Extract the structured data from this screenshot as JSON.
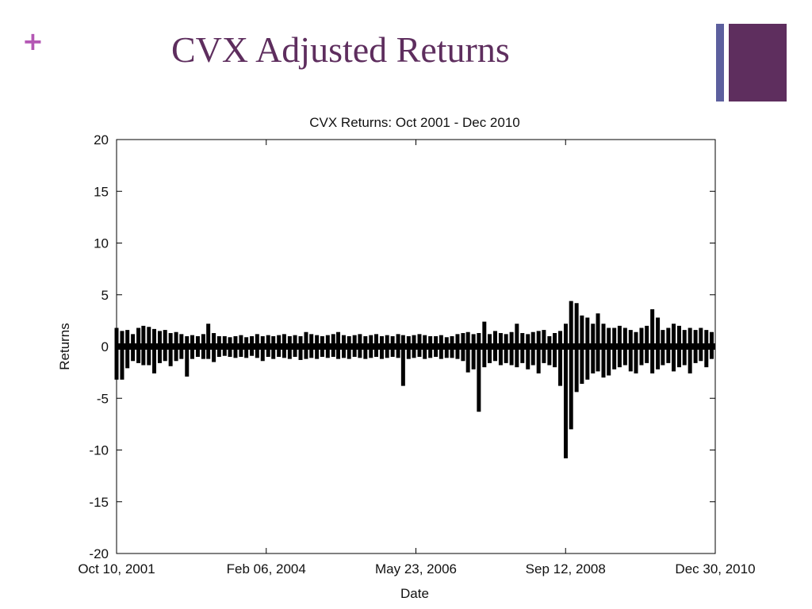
{
  "slide": {
    "plus": "+",
    "title": "CVX Adjusted Returns"
  },
  "colors": {
    "accent": "#5e2e5e",
    "plus": "#b457b4",
    "thin_bar": "#5c5f9e",
    "series": "#000000"
  },
  "chart_data": {
    "type": "line",
    "title": "CVX Returns: Oct 2001 - Dec 2010",
    "xlabel": "Date",
    "ylabel": "Returns",
    "ylim": [
      -20,
      20
    ],
    "yticks": [
      20,
      15,
      10,
      5,
      0,
      -5,
      -10,
      -15,
      -20
    ],
    "xlim": [
      "2001-10-10",
      "2010-12-30"
    ],
    "xticks": [
      "Oct 10, 2001",
      "Feb 06, 2004",
      "May 23, 2006",
      "Sep 12, 2008",
      "Dec 30, 2010"
    ],
    "grid": false,
    "series": [
      {
        "x": [
          "2001-10-10",
          "2001-11-10",
          "2001-12-10",
          "2002-01-10",
          "2002-02-10",
          "2002-03-10",
          "2002-04-10",
          "2002-05-10",
          "2002-06-10",
          "2002-07-10",
          "2002-08-10",
          "2002-09-10",
          "2002-10-10",
          "2002-11-10",
          "2002-12-10",
          "2003-01-10",
          "2003-02-10",
          "2003-03-10",
          "2003-04-10",
          "2003-05-10",
          "2003-06-10",
          "2003-07-10",
          "2003-08-10",
          "2003-09-10",
          "2003-10-10",
          "2003-11-10",
          "2003-12-10",
          "2004-01-10",
          "2004-02-10",
          "2004-03-10",
          "2004-04-10",
          "2004-05-10",
          "2004-06-10",
          "2004-07-10",
          "2004-08-10",
          "2004-09-10",
          "2004-10-10",
          "2004-11-10",
          "2004-12-10",
          "2005-01-10",
          "2005-02-10",
          "2005-03-10",
          "2005-04-10",
          "2005-05-10",
          "2005-06-10",
          "2005-07-10",
          "2005-08-10",
          "2005-09-10",
          "2005-10-10",
          "2005-11-10",
          "2005-12-10",
          "2006-01-10",
          "2006-02-10",
          "2006-03-10",
          "2006-04-10",
          "2006-05-10",
          "2006-06-10",
          "2006-07-10",
          "2006-08-10",
          "2006-09-10",
          "2006-10-10",
          "2006-11-10",
          "2006-12-10",
          "2007-01-10",
          "2007-02-10",
          "2007-03-10",
          "2007-04-10",
          "2007-05-10",
          "2007-06-10",
          "2007-07-10",
          "2007-08-10",
          "2007-09-10",
          "2007-10-10",
          "2007-11-10",
          "2007-12-10",
          "2008-01-10",
          "2008-02-10",
          "2008-03-10",
          "2008-04-10",
          "2008-05-10",
          "2008-06-10",
          "2008-07-10",
          "2008-08-10",
          "2008-09-10",
          "2008-10-10",
          "2008-11-10",
          "2008-12-10",
          "2009-01-10",
          "2009-02-10",
          "2009-03-10",
          "2009-04-10",
          "2009-05-10",
          "2009-06-10",
          "2009-07-10",
          "2009-08-10",
          "2009-09-10",
          "2009-10-10",
          "2009-11-10",
          "2009-12-10",
          "2010-01-10",
          "2010-02-10",
          "2010-03-10",
          "2010-04-10",
          "2010-05-10",
          "2010-06-10",
          "2010-07-10",
          "2010-08-10",
          "2010-09-10",
          "2010-10-10",
          "2010-11-10",
          "2010-12-10"
        ],
        "max": [
          1.8,
          1.5,
          1.6,
          1.2,
          1.8,
          2.0,
          1.9,
          1.7,
          1.5,
          1.6,
          1.3,
          1.4,
          1.2,
          1.0,
          1.1,
          1.0,
          1.2,
          2.2,
          1.3,
          1.0,
          1.0,
          0.9,
          1.0,
          1.1,
          0.9,
          1.0,
          1.2,
          1.0,
          1.1,
          1.0,
          1.1,
          1.2,
          1.0,
          1.1,
          1.0,
          1.4,
          1.2,
          1.1,
          1.0,
          1.1,
          1.2,
          1.4,
          1.1,
          1.0,
          1.1,
          1.2,
          1.0,
          1.1,
          1.2,
          1.0,
          1.1,
          1.0,
          1.2,
          1.1,
          1.0,
          1.1,
          1.2,
          1.1,
          1.0,
          1.0,
          1.1,
          0.9,
          1.0,
          1.2,
          1.3,
          1.4,
          1.2,
          1.3,
          2.4,
          1.2,
          1.5,
          1.3,
          1.2,
          1.4,
          2.2,
          1.3,
          1.2,
          1.4,
          1.5,
          1.6,
          1.0,
          1.3,
          1.5,
          2.2,
          4.4,
          4.2,
          3.0,
          2.8,
          2.2,
          3.2,
          2.2,
          1.8,
          1.8,
          2.0,
          1.8,
          1.6,
          1.4,
          1.8,
          2.0,
          3.6,
          2.8,
          1.6,
          1.8,
          2.2,
          2.0,
          1.6,
          1.8,
          1.6,
          1.8,
          1.6,
          1.4
        ],
        "min": [
          -3.2,
          -3.2,
          -2.1,
          -1.4,
          -1.6,
          -1.8,
          -1.8,
          -2.6,
          -1.6,
          -1.4,
          -1.9,
          -1.4,
          -1.2,
          -2.9,
          -1.2,
          -1.0,
          -1.2,
          -1.2,
          -1.5,
          -1.0,
          -0.9,
          -1.0,
          -1.1,
          -1.0,
          -1.1,
          -0.9,
          -1.1,
          -1.4,
          -1.0,
          -1.2,
          -1.0,
          -1.1,
          -1.2,
          -1.0,
          -1.3,
          -1.2,
          -1.1,
          -1.2,
          -1.0,
          -1.1,
          -1.0,
          -1.2,
          -1.1,
          -1.2,
          -1.0,
          -1.1,
          -1.2,
          -1.1,
          -1.0,
          -1.2,
          -1.1,
          -1.0,
          -1.1,
          -3.8,
          -1.2,
          -1.1,
          -1.0,
          -1.2,
          -1.1,
          -1.0,
          -1.2,
          -1.1,
          -1.1,
          -1.2,
          -1.4,
          -2.5,
          -2.2,
          -6.3,
          -2.0,
          -1.6,
          -1.4,
          -1.8,
          -1.6,
          -1.8,
          -2.0,
          -1.6,
          -2.2,
          -1.8,
          -2.6,
          -1.6,
          -1.8,
          -2.0,
          -3.8,
          -10.8,
          -8.0,
          -4.4,
          -3.6,
          -3.2,
          -2.6,
          -2.4,
          -3.0,
          -2.8,
          -2.2,
          -2.0,
          -1.8,
          -2.4,
          -2.6,
          -1.8,
          -1.6,
          -2.6,
          -2.2,
          -1.8,
          -1.6,
          -2.4,
          -2.0,
          -1.8,
          -2.6,
          -1.6,
          -1.4,
          -2.0,
          -1.2
        ]
      }
    ]
  }
}
